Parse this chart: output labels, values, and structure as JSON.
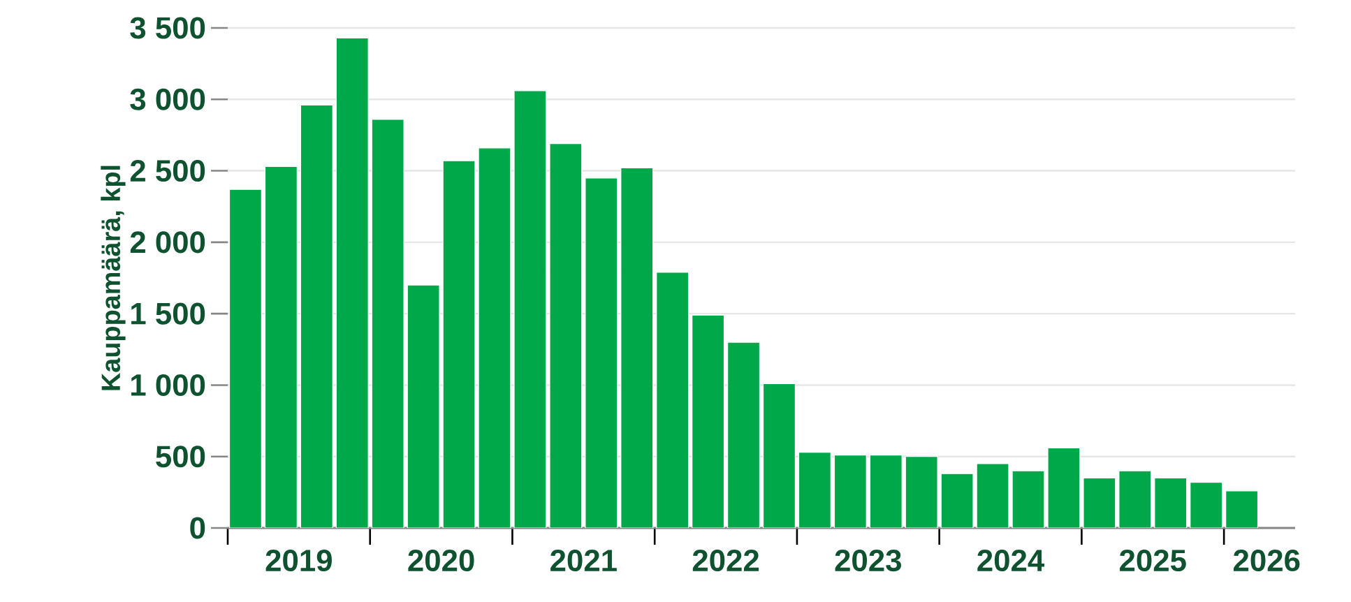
{
  "chart_data": {
    "type": "bar",
    "ylabel": "Kauppamäärä, kpl",
    "x": [
      2019.125,
      2019.375,
      2019.625,
      2019.875,
      2020.125,
      2020.375,
      2020.625,
      2020.875,
      2021.125,
      2021.375,
      2021.625,
      2021.875,
      2022.125,
      2022.375,
      2022.625,
      2022.875,
      2023.125,
      2023.375,
      2023.625,
      2023.875,
      2024.125,
      2024.375,
      2024.625,
      2024.875,
      2025.125,
      2025.375,
      2025.625,
      2025.875,
      2026.125
    ],
    "values": [
      2370,
      2530,
      2960,
      3430,
      2860,
      1700,
      2570,
      2660,
      3060,
      2690,
      2450,
      2520,
      1790,
      1490,
      1300,
      1010,
      530,
      510,
      510,
      500,
      380,
      450,
      400,
      560,
      350,
      400,
      350,
      320,
      260
    ],
    "color": "#00a84a",
    "xlim": [
      2019,
      2026.5
    ],
    "xticks": [
      {
        "value": 2019,
        "label": null
      },
      {
        "value": 2020,
        "label": null
      },
      {
        "value": 2021,
        "label": null
      },
      {
        "value": 2022,
        "label": null
      },
      {
        "value": 2023,
        "label": null
      },
      {
        "value": 2024,
        "label": null
      },
      {
        "value": 2025,
        "label": null
      },
      {
        "value": 2026,
        "label": null
      },
      {
        "value": 2019.5,
        "label": "2019"
      },
      {
        "value": 2020.5,
        "label": "2020"
      },
      {
        "value": 2021.5,
        "label": "2021"
      },
      {
        "value": 2022.5,
        "label": "2022"
      },
      {
        "value": 2023.5,
        "label": "2023"
      },
      {
        "value": 2024.5,
        "label": "2024"
      },
      {
        "value": 2025.5,
        "label": "2025"
      },
      {
        "value": 2026.3,
        "label": "2026"
      }
    ],
    "ylim": [
      0,
      3500
    ],
    "yticks": [
      0,
      500,
      {
        "value": 1000,
        "label": "1 000"
      },
      {
        "value": 1500,
        "label": "1 500"
      },
      {
        "value": 2000,
        "label": "2 000"
      },
      {
        "value": 2500,
        "label": "2 500"
      },
      {
        "value": 3000,
        "label": "3 000"
      },
      {
        "value": 3500,
        "label": "3 500"
      }
    ],
    "grid": "y"
  }
}
